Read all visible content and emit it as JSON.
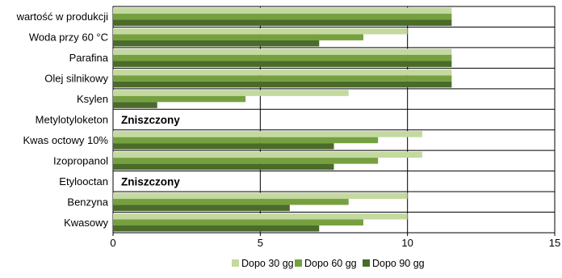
{
  "chart_data": {
    "type": "bar",
    "orientation": "horizontal",
    "title": "",
    "xlabel": "",
    "ylabel": "",
    "xlim": [
      0,
      15
    ],
    "x_ticks": [
      0,
      5,
      10,
      15
    ],
    "grid": true,
    "legend_position": "bottom",
    "categories": [
      "wartość w produkcji",
      "Woda przy 60 °C",
      "Parafina",
      "Olej silnikowy",
      "Ksylen",
      "Metylotyloketon",
      "Kwas octowy 10%",
      "Izopropanol",
      "Etylooctan",
      "Benzyna",
      "Kwasowy"
    ],
    "series": [
      {
        "name": "Dopo 30 gg",
        "color": "#c3d9a0",
        "values": [
          11.5,
          10,
          11.5,
          11.5,
          8,
          null,
          10.5,
          10.5,
          null,
          10,
          10
        ]
      },
      {
        "name": "Dopo 60 gg",
        "color": "#76a040",
        "values": [
          11.5,
          8.5,
          11.5,
          11.5,
          4.5,
          null,
          9,
          9,
          null,
          8,
          8.5
        ]
      },
      {
        "name": "Dopo 90 gg",
        "color": "#4a6b2a",
        "values": [
          11.5,
          7,
          11.5,
          11.5,
          1.5,
          null,
          7.5,
          7.5,
          null,
          6,
          7
        ]
      }
    ],
    "annotations": [
      {
        "category": "Metylotyloketon",
        "text": "Zniszczony"
      },
      {
        "category": "Etylooctan",
        "text": "Zniszczony"
      }
    ]
  }
}
